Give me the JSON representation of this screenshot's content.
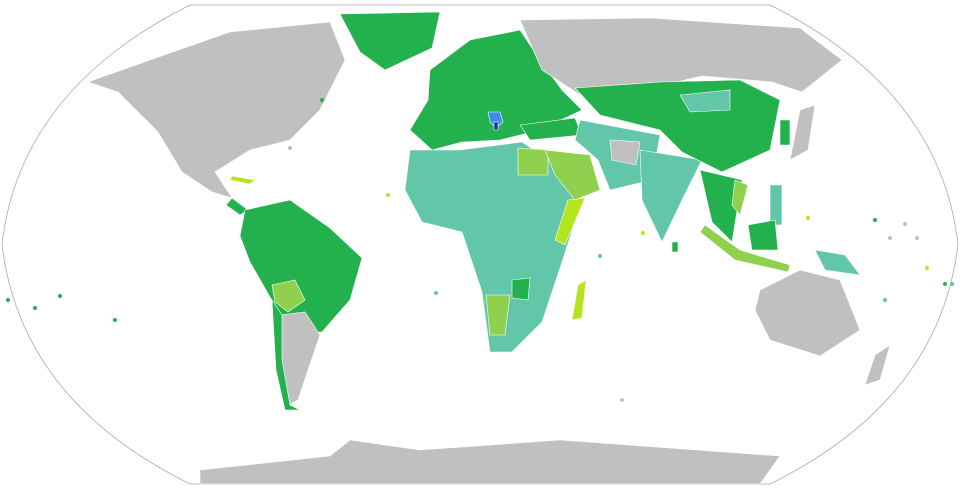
{
  "map": {
    "type": "world-choropleth",
    "projection": "robinson",
    "colors": {
      "ocean": "#ffffff",
      "outline": "#aaaaaa",
      "no_data": "#c0c0c0",
      "dark_green": "#22b14c",
      "teal": "#62c7a8",
      "light_green": "#8fd14f",
      "yellow_green": "#b5e61d",
      "blue": "#3e8ee8",
      "dark_blue": "#0a37a0"
    }
  }
}
